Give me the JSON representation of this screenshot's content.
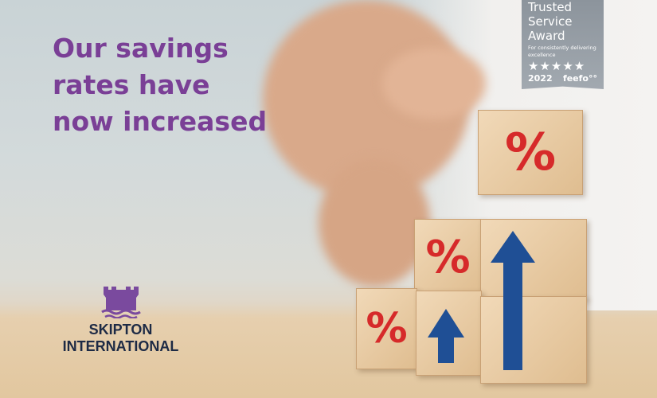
{
  "headline": {
    "lines": [
      "Our savings",
      "rates have",
      "now increased"
    ],
    "color": "#7a3f96"
  },
  "badge": {
    "title_lines": [
      "Trusted",
      "Service",
      "Award"
    ],
    "subtitle": "For consistently delivering excellence",
    "stars": "★★★★★",
    "year": "2022",
    "brand": "feefo°°"
  },
  "logo": {
    "line1": "SKIPTON",
    "line2": "INTERNATIONAL",
    "icon": "castle-waves-icon",
    "color": "#7a4a9e"
  },
  "blocks": {
    "symbol": "%",
    "symbol_color": "#d62a2a",
    "arrow_color": "#1f4f95"
  }
}
